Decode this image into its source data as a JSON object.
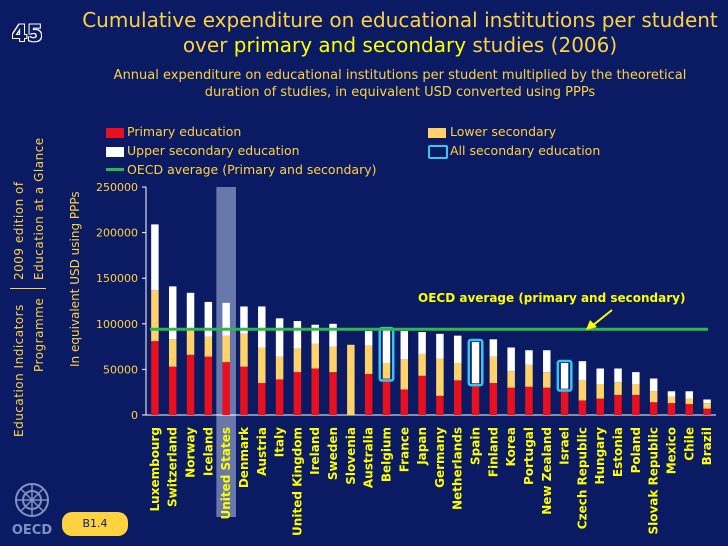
{
  "slide_number": "45",
  "side_text": {
    "line1": "Education Indicators",
    "line2": "Programme",
    "line3": "2009 edition of",
    "line4": "Education at a Glance"
  },
  "title": {
    "part1": "Cumulative expenditure on educational institutions per student over ",
    "highlight": "primary and secondary",
    "part2": " studies (2006)"
  },
  "subtitle": "Annual expenditure on educational institutions per student multiplied by the theoretical duration of studies, in equivalent USD converted using PPPs",
  "legend": {
    "primary": "Primary education",
    "lower": "Lower secondary",
    "upper": "Upper secondary education",
    "all_secondary": "All secondary education",
    "oecd": "OECD average (Primary and secondary)"
  },
  "badge": "B1.4",
  "logo_text": "OECD",
  "colors": {
    "background": "#0a1a63",
    "text": "#ffd23f",
    "primary": "#e8101e",
    "lower": "#ffd36a",
    "upper": "#ffffff",
    "oecd_line": "#2db84a",
    "all_secondary": "#33c8f0",
    "highlight_band": "#7a8ab8"
  },
  "chart_data": {
    "type": "bar",
    "stacked": true,
    "ylabel": "In equivalent USD using PPPs",
    "ylim": [
      0,
      250000
    ],
    "yticks": [
      0,
      50000,
      100000,
      150000,
      200000,
      250000
    ],
    "ytick_labels": [
      "0",
      "50000",
      "100000",
      "150000",
      "200000",
      "250000"
    ],
    "categories": [
      "Luxembourg",
      "Switzerland",
      "Norway",
      "Iceland",
      "United States",
      "Denmark",
      "Austria",
      "Italy",
      "United Kingdom",
      "Ireland",
      "Sweden",
      "Slovenia",
      "Australia",
      "Belgium",
      "France",
      "Japan",
      "Germany",
      "Netherlands",
      "Spain",
      "Finland",
      "Korea",
      "Portugal",
      "New Zealand",
      "Israel",
      "Czech Republic",
      "Hungary",
      "Estonia",
      "Poland",
      "Slovak Republic",
      "Mexico",
      "Chile",
      "Brazil"
    ],
    "series": [
      {
        "name": "Primary education",
        "color": "#e8101e",
        "values": [
          81000,
          53000,
          66000,
          64000,
          58000,
          53000,
          35000,
          39000,
          47000,
          51000,
          47000,
          0,
          45000,
          40000,
          28000,
          43000,
          21000,
          38000,
          35000,
          35000,
          30000,
          31000,
          30000,
          29000,
          16000,
          18000,
          22000,
          22000,
          14000,
          13000,
          12000,
          7000
        ]
      },
      {
        "name": "Lower secondary",
        "color": "#ffd36a",
        "values": [
          56000,
          30000,
          28000,
          22000,
          29000,
          36000,
          39000,
          25000,
          26000,
          27000,
          28000,
          77000,
          31000,
          17000,
          33000,
          24000,
          41000,
          19000,
          0,
          29000,
          18000,
          24000,
          17000,
          0,
          22000,
          16000,
          14000,
          12000,
          12000,
          7000,
          6000,
          6000
        ]
      },
      {
        "name": "Upper secondary education",
        "color": "#ffffff",
        "values": [
          72000,
          58000,
          40000,
          38000,
          36000,
          30000,
          45000,
          42000,
          30000,
          21000,
          25000,
          0,
          16000,
          36000,
          31000,
          24000,
          27000,
          30000,
          45000,
          19000,
          26000,
          16000,
          24000,
          28000,
          21000,
          17000,
          15000,
          13000,
          14000,
          6000,
          8000,
          4000
        ]
      }
    ],
    "all_secondary_outlined": [
      "Belgium",
      "Spain",
      "Israel"
    ],
    "highlighted_category": "United States",
    "oecd_average": 94000,
    "annotation": "OECD average (primary and secondary)",
    "grid": false,
    "legend_position": "top"
  }
}
